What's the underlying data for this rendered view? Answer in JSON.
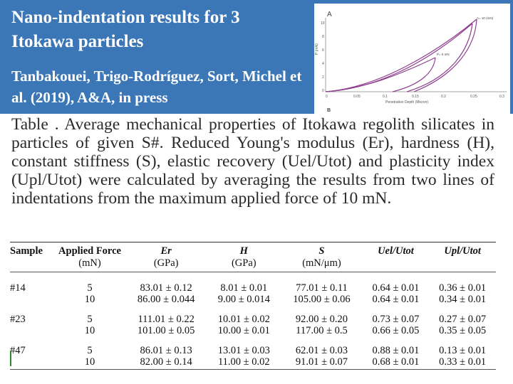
{
  "header": {
    "title": "Nano-indentation results for 3 Itokawa particles",
    "authors": "Tanbakouei, Trigo-Rodríguez, Sort, Michel et al. (2019), A&A, in press"
  },
  "figure": {
    "panel_a_label": "A",
    "panel_b_label": "B",
    "ylabel": "P (mN)",
    "xlabel": "Penetration Depth (Micron)",
    "legend_top": "A= 10 (mN)",
    "legend_mid": "P= 5 mN",
    "y_ticks": [
      "10",
      "8",
      "6",
      "4",
      "2",
      "0"
    ],
    "x_ticks": [
      "0",
      "0.05",
      "0.1",
      "0.15",
      "0.2",
      "0.25",
      "0.3"
    ],
    "curve_color": "#8e3f8e"
  },
  "caption": {
    "text": "Table . Average mechanical properties of Itokawa regolith silicates in particles of given S#. Reduced Young's modulus (Er), hardness (H), constant stiffness (S), elastic recovery (Uel/Utot) and plasticity index (Upl/Utot) were calculated by averaging the results from two lines of indentations from the maximum applied force of 10 mN."
  },
  "table": {
    "headers": [
      "Sample",
      "Applied Force",
      "Er",
      "H",
      "S",
      "Uel/Utot",
      "Upl/Utot"
    ],
    "units": [
      "",
      "(mN)",
      "(GPa)",
      "(GPa)",
      "(mN/μm)",
      "",
      ""
    ],
    "rows": [
      [
        "#14",
        "5",
        "83.01 ± 0.12",
        "8.01 ± 0.01",
        "77.01 ± 0.11",
        "0.64 ± 0.01",
        "0.36 ± 0.01"
      ],
      [
        "",
        "10",
        "86.00 ± 0.044",
        "9.00 ± 0.014",
        "105.00 ± 0.06",
        "0.64 ± 0.01",
        "0.34 ± 0.01"
      ],
      [
        "#23",
        "5",
        "111.01 ± 0.22",
        "10.01 ± 0.02",
        "92.00 ± 0.20",
        "0.73 ± 0.07",
        "0.27 ± 0.07"
      ],
      [
        "",
        "10",
        "101.00 ± 0.05",
        "10.00 ± 0.01",
        "117.00 ± 0.5",
        "0.66 ± 0.05",
        "0.35 ± 0.05"
      ],
      [
        "#47",
        "5",
        "86.01 ± 0.13",
        "13.01 ± 0.03",
        "62.01 ± 0.03",
        "0.88 ± 0.01",
        "0.13 ± 0.01"
      ],
      [
        "",
        "10",
        "82.00 ± 0.14",
        "11.00 ± 0.02",
        "91.01 ± 0.07",
        "0.68 ± 0.01",
        "0.33 ± 0.01"
      ]
    ]
  }
}
